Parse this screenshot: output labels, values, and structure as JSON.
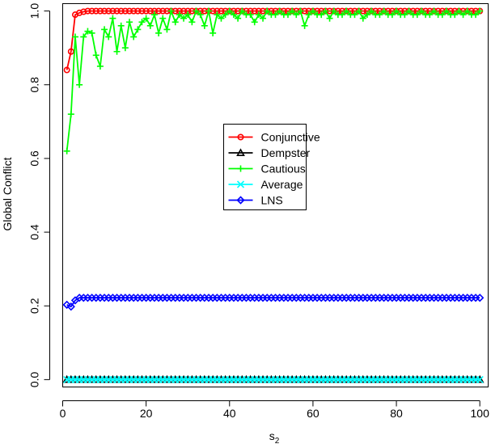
{
  "chart_data": {
    "type": "line",
    "title": "",
    "xlabel": "s",
    "xlabel_subscript": "2",
    "ylabel": "Global Conflict",
    "xlim": [
      0,
      102
    ],
    "ylim": [
      -0.02,
      1.02
    ],
    "xticks": [
      0,
      20,
      40,
      60,
      80,
      100
    ],
    "yticks": [
      0.0,
      0.2,
      0.4,
      0.6,
      0.8,
      1.0
    ],
    "xtick_labels": [
      "0",
      "20",
      "40",
      "60",
      "80",
      "100"
    ],
    "ytick_labels": [
      "0.0",
      "0.2",
      "0.4",
      "0.6",
      "0.8",
      "1.0"
    ],
    "grid": false,
    "legend_position": "center",
    "x": [
      1,
      2,
      3,
      4,
      5,
      6,
      7,
      8,
      9,
      10,
      11,
      12,
      13,
      14,
      15,
      16,
      17,
      18,
      19,
      20,
      21,
      22,
      23,
      24,
      25,
      26,
      27,
      28,
      29,
      30,
      31,
      32,
      33,
      34,
      35,
      36,
      37,
      38,
      39,
      40,
      41,
      42,
      43,
      44,
      45,
      46,
      47,
      48,
      49,
      50,
      51,
      52,
      53,
      54,
      55,
      56,
      57,
      58,
      59,
      60,
      61,
      62,
      63,
      64,
      65,
      66,
      67,
      68,
      69,
      70,
      71,
      72,
      73,
      74,
      75,
      76,
      77,
      78,
      79,
      80,
      81,
      82,
      83,
      84,
      85,
      86,
      87,
      88,
      89,
      90,
      91,
      92,
      93,
      94,
      95,
      96,
      97,
      98,
      99,
      100
    ],
    "series": [
      {
        "name": "Conjunctive",
        "color": "#ff0000",
        "marker": "circle",
        "values": [
          0.84,
          0.89,
          0.99,
          0.995,
          0.998,
          1,
          1,
          1,
          1,
          1,
          1,
          1,
          1,
          1,
          1,
          1,
          1,
          1,
          1,
          1,
          1,
          1,
          1,
          1,
          1,
          1,
          1,
          1,
          1,
          1,
          1,
          1,
          1,
          1,
          1,
          1,
          1,
          1,
          1,
          1,
          1,
          1,
          1,
          1,
          1,
          1,
          1,
          1,
          1,
          1,
          1,
          1,
          1,
          1,
          1,
          1,
          1,
          1,
          1,
          1,
          1,
          1,
          1,
          1,
          1,
          1,
          1,
          1,
          1,
          1,
          1,
          1,
          1,
          1,
          1,
          1,
          1,
          1,
          1,
          1,
          1,
          1,
          1,
          1,
          1,
          1,
          1,
          1,
          1,
          1,
          1,
          1,
          1,
          1,
          1,
          1,
          1,
          1,
          1,
          1
        ]
      },
      {
        "name": "Dempster",
        "color": "#000000",
        "marker": "triangle",
        "values": [
          0,
          0,
          0,
          0,
          0,
          0,
          0,
          0,
          0,
          0,
          0,
          0,
          0,
          0,
          0,
          0,
          0,
          0,
          0,
          0,
          0,
          0,
          0,
          0,
          0,
          0,
          0,
          0,
          0,
          0,
          0,
          0,
          0,
          0,
          0,
          0,
          0,
          0,
          0,
          0,
          0,
          0,
          0,
          0,
          0,
          0,
          0,
          0,
          0,
          0,
          0,
          0,
          0,
          0,
          0,
          0,
          0,
          0,
          0,
          0,
          0,
          0,
          0,
          0,
          0,
          0,
          0,
          0,
          0,
          0,
          0,
          0,
          0,
          0,
          0,
          0,
          0,
          0,
          0,
          0,
          0,
          0,
          0,
          0,
          0,
          0,
          0,
          0,
          0,
          0,
          0,
          0,
          0,
          0,
          0,
          0,
          0,
          0,
          0,
          0
        ]
      },
      {
        "name": "Cautious",
        "color": "#00ff00",
        "marker": "plus",
        "values": [
          0.62,
          0.72,
          0.93,
          0.8,
          0.93,
          0.945,
          0.94,
          0.88,
          0.85,
          0.95,
          0.93,
          0.98,
          0.89,
          0.96,
          0.9,
          0.97,
          0.93,
          0.95,
          0.97,
          0.98,
          0.96,
          0.99,
          0.94,
          0.98,
          0.95,
          1.0,
          0.97,
          0.99,
          0.98,
          0.99,
          0.97,
          1.0,
          0.99,
          0.96,
          1.0,
          0.94,
          0.99,
          0.98,
          0.99,
          1.0,
          0.99,
          0.98,
          1.0,
          0.99,
          0.99,
          0.97,
          0.99,
          0.98,
          1.0,
          0.99,
          0.99,
          1.0,
          0.99,
          0.99,
          1.0,
          0.99,
          1.0,
          0.96,
          0.99,
          1.0,
          0.99,
          0.99,
          1.0,
          0.98,
          1.0,
          0.99,
          0.99,
          1.0,
          0.99,
          0.99,
          1.0,
          0.98,
          0.99,
          1.0,
          0.99,
          0.99,
          1.0,
          0.99,
          0.99,
          1.0,
          0.99,
          0.99,
          1.0,
          0.99,
          0.99,
          1.0,
          0.99,
          0.99,
          1.0,
          0.99,
          0.99,
          1.0,
          0.99,
          0.99,
          1.0,
          0.99,
          1.0,
          0.99,
          0.99,
          1.0
        ]
      },
      {
        "name": "Average",
        "color": "#00ffff",
        "marker": "x",
        "values": [
          0,
          0,
          0,
          0,
          0,
          0,
          0,
          0,
          0,
          0,
          0,
          0,
          0,
          0,
          0,
          0,
          0,
          0,
          0,
          0,
          0,
          0,
          0,
          0,
          0,
          0,
          0,
          0,
          0,
          0,
          0,
          0,
          0,
          0,
          0,
          0,
          0,
          0,
          0,
          0,
          0,
          0,
          0,
          0,
          0,
          0,
          0,
          0,
          0,
          0,
          0,
          0,
          0,
          0,
          0,
          0,
          0,
          0,
          0,
          0,
          0,
          0,
          0,
          0,
          0,
          0,
          0,
          0,
          0,
          0,
          0,
          0,
          0,
          0,
          0,
          0,
          0,
          0,
          0,
          0,
          0,
          0,
          0,
          0,
          0,
          0,
          0,
          0,
          0,
          0,
          0,
          0,
          0,
          0,
          0,
          0,
          0,
          0,
          0,
          0
        ]
      },
      {
        "name": "LNS",
        "color": "#0000ff",
        "marker": "diamond",
        "values": [
          0.203,
          0.198,
          0.215,
          0.222,
          0.222,
          0.222,
          0.222,
          0.222,
          0.222,
          0.222,
          0.222,
          0.222,
          0.222,
          0.222,
          0.222,
          0.222,
          0.222,
          0.222,
          0.222,
          0.222,
          0.222,
          0.222,
          0.222,
          0.222,
          0.222,
          0.222,
          0.222,
          0.222,
          0.222,
          0.222,
          0.222,
          0.222,
          0.222,
          0.222,
          0.222,
          0.222,
          0.222,
          0.222,
          0.222,
          0.222,
          0.222,
          0.222,
          0.222,
          0.222,
          0.222,
          0.222,
          0.222,
          0.222,
          0.222,
          0.222,
          0.222,
          0.222,
          0.222,
          0.222,
          0.222,
          0.222,
          0.222,
          0.222,
          0.222,
          0.222,
          0.222,
          0.222,
          0.222,
          0.222,
          0.222,
          0.222,
          0.222,
          0.222,
          0.222,
          0.222,
          0.222,
          0.222,
          0.222,
          0.222,
          0.222,
          0.222,
          0.222,
          0.222,
          0.222,
          0.222,
          0.222,
          0.222,
          0.222,
          0.222,
          0.222,
          0.222,
          0.222,
          0.222,
          0.222,
          0.222,
          0.222,
          0.222,
          0.222,
          0.222,
          0.222,
          0.222,
          0.222,
          0.222,
          0.222,
          0.222
        ]
      }
    ]
  }
}
